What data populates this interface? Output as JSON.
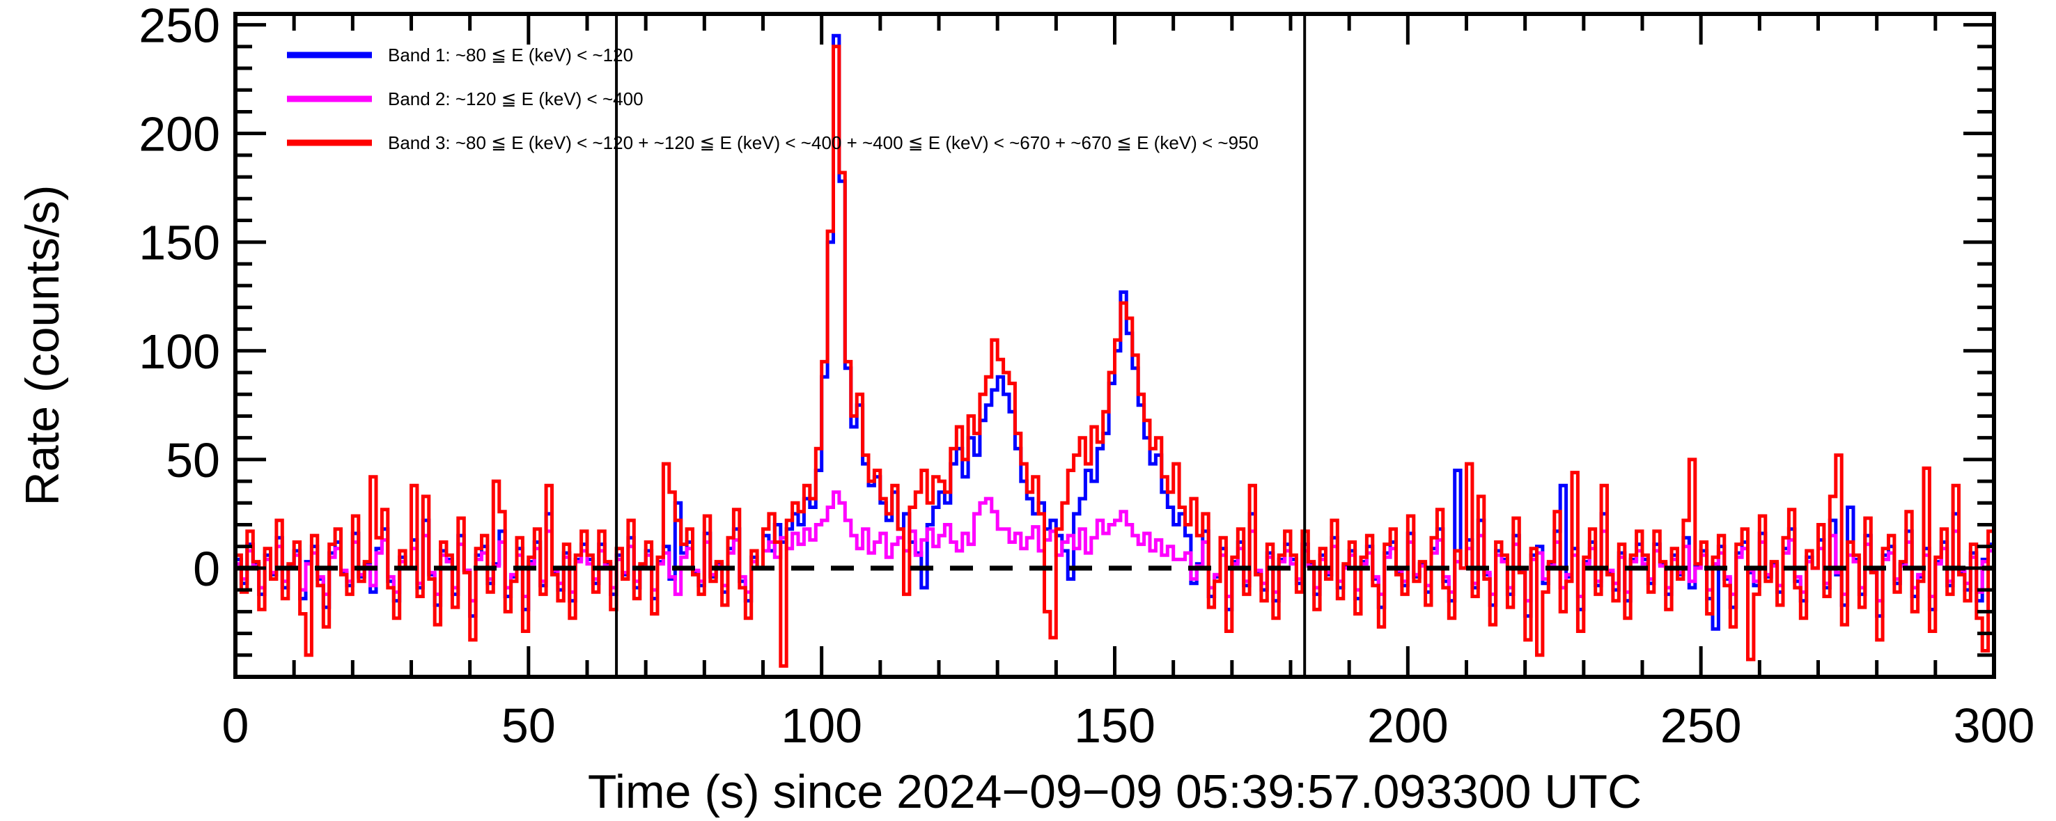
{
  "figure": {
    "background": "#ffffff"
  },
  "chart_data": {
    "type": "line",
    "subtype": "step-histogram-lightcurve",
    "title": "",
    "xlabel": "Time (s) since 2024−09−09 05:39:57.093300 UTC",
    "ylabel": "Rate (counts/s)",
    "xlim": [
      0,
      300
    ],
    "ylim": [
      -50,
      255
    ],
    "grid": false,
    "legend_position": "top-left-inside",
    "x_major_ticks": [
      0,
      50,
      100,
      150,
      200,
      250,
      300
    ],
    "x_tick_labels": [
      "0",
      "50",
      "100",
      "150",
      "200",
      "250",
      "300"
    ],
    "x_minor_step": 10,
    "y_major_ticks": [
      0,
      50,
      100,
      150,
      200,
      250
    ],
    "y_tick_labels": [
      "0",
      "50",
      "100",
      "150",
      "200",
      "250"
    ],
    "y_minor_step": 10,
    "zero_line": {
      "y": 0,
      "style": "dashed",
      "color": "#000000"
    },
    "vlines": [
      {
        "x": 65.0,
        "color": "#000000"
      },
      {
        "x": 182.4,
        "color": "#000000"
      }
    ],
    "bin_width_s": 1,
    "t_start_s": 0,
    "series": [
      {
        "name": "Band 1",
        "label": "Band 1: ~80 ≦ E (keV) < ~120",
        "color": "#0000ff",
        "values": [
          4,
          -7,
          11,
          2,
          -12,
          6,
          -3,
          14,
          -9,
          1,
          8,
          -14,
          3,
          10,
          -5,
          -18,
          7,
          12,
          -2,
          -8,
          16,
          -4,
          2,
          -11,
          9,
          18,
          -6,
          -15,
          5,
          0,
          13,
          -9,
          22,
          -3,
          -17,
          8,
          4,
          -12,
          15,
          -1,
          -22,
          6,
          10,
          -7,
          2,
          17,
          -13,
          -4,
          9,
          -19,
          3,
          12,
          -8,
          25,
          -2,
          -10,
          7,
          -15,
          4,
          11,
          4,
          -7,
          11,
          2,
          -12,
          6,
          -3,
          14,
          -9,
          1,
          8,
          -14,
          3,
          10,
          -5,
          30,
          7,
          12,
          -2,
          -8,
          16,
          -4,
          2,
          -11,
          9,
          18,
          -6,
          -15,
          5,
          0,
          15,
          8,
          20,
          12,
          18,
          25,
          20,
          32,
          28,
          45,
          88,
          150,
          245,
          178,
          92,
          65,
          75,
          48,
          38,
          42,
          30,
          22,
          35,
          18,
          25,
          12,
          7,
          -9,
          20,
          28,
          35,
          30,
          48,
          55,
          42,
          60,
          52,
          68,
          75,
          82,
          88,
          80,
          72,
          55,
          40,
          32,
          25,
          30,
          18,
          22,
          15,
          8,
          -5,
          25,
          32,
          45,
          40,
          55,
          62,
          85,
          100,
          127,
          108,
          92,
          75,
          60,
          48,
          52,
          35,
          28,
          20,
          25,
          15,
          -7,
          2,
          17,
          -13,
          -4,
          9,
          -19,
          3,
          12,
          -8,
          25,
          -2,
          -10,
          7,
          -15,
          4,
          11,
          4,
          -7,
          11,
          2,
          -12,
          6,
          -3,
          14,
          -9,
          1,
          8,
          -14,
          3,
          10,
          -5,
          -18,
          7,
          12,
          -2,
          -8,
          16,
          -4,
          2,
          -11,
          9,
          18,
          -6,
          -15,
          45,
          0,
          13,
          -9,
          22,
          -3,
          -17,
          8,
          4,
          -12,
          15,
          -1,
          -22,
          6,
          10,
          -7,
          2,
          17,
          38,
          -4,
          9,
          -19,
          3,
          12,
          -8,
          25,
          -2,
          -10,
          7,
          -15,
          4,
          11,
          4,
          -7,
          11,
          2,
          -12,
          6,
          -3,
          14,
          -9,
          1,
          8,
          -14,
          -28,
          10,
          -5,
          -18,
          7,
          12,
          -2,
          -8,
          16,
          -4,
          2,
          -11,
          9,
          18,
          -6,
          -15,
          5,
          0,
          13,
          -9,
          22,
          -3,
          -17,
          28,
          4,
          -12,
          15,
          -1,
          -22,
          6,
          10,
          -7,
          2,
          17,
          -13,
          -4,
          9,
          -19,
          3,
          12,
          -8,
          25,
          -2,
          -10,
          7,
          -15,
          4,
          11
        ]
      },
      {
        "name": "Band 2",
        "label": "Band 2: ~120 ≦ E (keV) < ~400",
        "color": "#ff00ff",
        "values": [
          2,
          -5,
          8,
          1,
          -9,
          4,
          -2,
          10,
          -6,
          0,
          6,
          -10,
          2,
          7,
          -4,
          -12,
          5,
          9,
          -1,
          -6,
          12,
          -3,
          1,
          -8,
          7,
          13,
          -4,
          -11,
          3,
          0,
          9,
          -7,
          15,
          -2,
          -12,
          6,
          3,
          -9,
          11,
          -1,
          -15,
          4,
          7,
          -5,
          1,
          12,
          -9,
          -3,
          6,
          -13,
          2,
          9,
          -6,
          17,
          -1,
          -7,
          5,
          -11,
          3,
          8,
          2,
          -5,
          8,
          1,
          -9,
          4,
          -2,
          10,
          -6,
          0,
          6,
          -10,
          2,
          7,
          -4,
          -12,
          5,
          9,
          -1,
          -6,
          12,
          -3,
          1,
          -8,
          7,
          13,
          -4,
          -11,
          3,
          0,
          8,
          12,
          5,
          14,
          9,
          16,
          11,
          18,
          13,
          20,
          22,
          28,
          35,
          30,
          22,
          15,
          9,
          18,
          7,
          12,
          16,
          5,
          11,
          14,
          8,
          17,
          6,
          13,
          18,
          10,
          15,
          20,
          12,
          8,
          16,
          11,
          25,
          30,
          32,
          26,
          18,
          18,
          12,
          16,
          9,
          14,
          19,
          8,
          13,
          17,
          6,
          12,
          15,
          9,
          18,
          7,
          14,
          22,
          16,
          20,
          22,
          26,
          20,
          15,
          11,
          16,
          8,
          13,
          6,
          10,
          4,
          4,
          7,
          -5,
          1,
          12,
          -9,
          -3,
          6,
          -13,
          2,
          9,
          -6,
          17,
          -1,
          -7,
          5,
          -11,
          3,
          8,
          2,
          -5,
          8,
          1,
          -9,
          4,
          -2,
          10,
          -6,
          0,
          6,
          -10,
          2,
          7,
          -4,
          -12,
          5,
          9,
          -1,
          -6,
          12,
          -3,
          1,
          -8,
          7,
          13,
          -4,
          -11,
          3,
          0,
          9,
          -7,
          15,
          -2,
          -12,
          6,
          3,
          -9,
          11,
          -1,
          -15,
          4,
          7,
          -5,
          1,
          12,
          -9,
          -3,
          6,
          -13,
          2,
          9,
          -6,
          17,
          -1,
          -7,
          5,
          -11,
          3,
          8,
          2,
          -5,
          8,
          1,
          -9,
          4,
          -2,
          10,
          -6,
          0,
          6,
          -10,
          2,
          7,
          -4,
          -12,
          5,
          9,
          -1,
          -6,
          12,
          -3,
          1,
          -8,
          7,
          13,
          -4,
          -11,
          3,
          0,
          9,
          -7,
          15,
          -2,
          -12,
          6,
          3,
          -9,
          11,
          -1,
          -15,
          4,
          7,
          -5,
          1,
          12,
          -9,
          -3,
          6,
          -13,
          2,
          9,
          -6,
          17,
          -1,
          -7,
          5,
          -11,
          3,
          8
        ]
      },
      {
        "name": "Band 3",
        "label": "Band 3: ~80 ≦ E (keV) < ~120 + ~120 ≦ E (keV) < ~400 + ~400 ≦ E (keV) < ~670 + ~670 ≦ E (keV) < ~950",
        "color": "#ff0000",
        "values": [
          6,
          -11,
          17,
          3,
          -19,
          9,
          -5,
          22,
          -14,
          2,
          12,
          -21,
          -40,
          15,
          -8,
          -27,
          11,
          18,
          -3,
          -12,
          24,
          -6,
          3,
          42,
          14,
          27,
          -9,
          -23,
          8,
          0,
          38,
          -13,
          33,
          -5,
          -26,
          12,
          6,
          -18,
          23,
          -2,
          -33,
          9,
          15,
          -11,
          40,
          26,
          -20,
          -6,
          14,
          -29,
          5,
          18,
          -12,
          38,
          -3,
          -15,
          11,
          -23,
          6,
          17,
          6,
          -11,
          17,
          3,
          -19,
          9,
          -5,
          22,
          -14,
          2,
          12,
          -21,
          5,
          48,
          35,
          22,
          11,
          18,
          -3,
          -12,
          24,
          -6,
          3,
          -17,
          14,
          27,
          -9,
          -23,
          8,
          0,
          18,
          25,
          12,
          -45,
          22,
          30,
          26,
          38,
          32,
          55,
          95,
          155,
          240,
          182,
          95,
          70,
          80,
          52,
          40,
          45,
          32,
          25,
          38,
          18,
          -12,
          28,
          35,
          45,
          30,
          42,
          40,
          35,
          55,
          65,
          50,
          70,
          62,
          80,
          88,
          105,
          96,
          90,
          85,
          62,
          48,
          35,
          42,
          25,
          -20,
          -32,
          18,
          30,
          45,
          52,
          60,
          48,
          65,
          58,
          72,
          90,
          105,
          122,
          115,
          98,
          80,
          68,
          55,
          60,
          42,
          35,
          48,
          28,
          20,
          32,
          15,
          25,
          -18,
          -6,
          14,
          -29,
          5,
          18,
          -12,
          38,
          -3,
          -15,
          11,
          -23,
          6,
          17,
          6,
          -11,
          17,
          3,
          -19,
          9,
          -5,
          22,
          -14,
          2,
          12,
          -21,
          5,
          15,
          -8,
          -27,
          11,
          18,
          -3,
          -12,
          24,
          -6,
          3,
          -17,
          14,
          27,
          -9,
          -23,
          8,
          0,
          48,
          -13,
          33,
          -5,
          -26,
          12,
          6,
          -18,
          23,
          -2,
          -33,
          9,
          -40,
          -11,
          3,
          26,
          -20,
          -6,
          44,
          -29,
          5,
          18,
          -12,
          38,
          -3,
          -15,
          11,
          -23,
          6,
          17,
          6,
          -11,
          17,
          3,
          -19,
          9,
          -5,
          22,
          50,
          2,
          12,
          -21,
          5,
          15,
          -8,
          -27,
          11,
          18,
          -42,
          -12,
          24,
          -6,
          3,
          -17,
          14,
          27,
          -9,
          -23,
          8,
          0,
          20,
          -13,
          33,
          52,
          -26,
          12,
          6,
          -18,
          23,
          -2,
          -33,
          9,
          15,
          -11,
          3,
          26,
          -20,
          -6,
          46,
          -29,
          5,
          18,
          -12,
          38,
          -3,
          -15,
          11,
          -23,
          -38,
          17
        ]
      }
    ]
  }
}
